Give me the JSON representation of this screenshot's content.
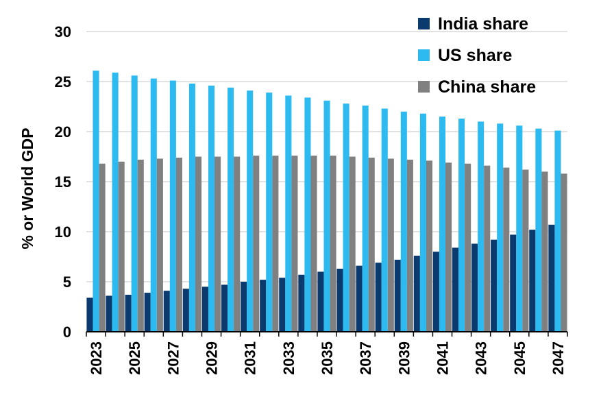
{
  "chart_data": {
    "type": "bar",
    "ylabel": "% or World GDP",
    "xlabel": "",
    "ylim": [
      0,
      30
    ],
    "yticks": [
      0,
      5,
      10,
      15,
      20,
      25,
      30
    ],
    "grid": "horizontal",
    "legend_position": "top-right",
    "x": [
      2023,
      2024,
      2025,
      2026,
      2027,
      2028,
      2029,
      2030,
      2031,
      2032,
      2033,
      2034,
      2035,
      2036,
      2037,
      2038,
      2039,
      2040,
      2041,
      2042,
      2043,
      2044,
      2045,
      2046,
      2047
    ],
    "x_tick_labels": [
      "2023",
      "2025",
      "2027",
      "2029",
      "2031",
      "2033",
      "2035",
      "2037",
      "2039",
      "2041",
      "2043",
      "2045",
      "2047"
    ],
    "series": [
      {
        "name": "India share",
        "color": "#0b3a6e",
        "values": [
          3.4,
          3.6,
          3.7,
          3.9,
          4.1,
          4.3,
          4.5,
          4.7,
          5.0,
          5.2,
          5.4,
          5.7,
          6.0,
          6.3,
          6.6,
          6.9,
          7.2,
          7.6,
          8.0,
          8.4,
          8.8,
          9.2,
          9.7,
          10.2,
          10.7
        ]
      },
      {
        "name": "US share",
        "color": "#2dbaf0",
        "values": [
          26.1,
          25.9,
          25.6,
          25.3,
          25.1,
          24.8,
          24.6,
          24.4,
          24.1,
          23.9,
          23.6,
          23.4,
          23.1,
          22.8,
          22.6,
          22.3,
          22.0,
          21.8,
          21.5,
          21.3,
          21.0,
          20.8,
          20.6,
          20.3,
          20.1
        ]
      },
      {
        "name": "China share",
        "color": "#808080",
        "values": [
          16.8,
          17.0,
          17.2,
          17.3,
          17.4,
          17.5,
          17.5,
          17.5,
          17.6,
          17.6,
          17.6,
          17.6,
          17.6,
          17.5,
          17.4,
          17.3,
          17.2,
          17.1,
          16.9,
          16.8,
          16.6,
          16.4,
          16.2,
          16.0,
          15.8
        ]
      }
    ]
  }
}
